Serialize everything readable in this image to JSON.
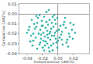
{
  "chart_data": {
    "type": "scatter",
    "xlabel": "Instantaneous CAR(%)",
    "ylabel": "Cumulative CAR(%)",
    "color": "#2bb3a5",
    "marker": "circle",
    "grid": false,
    "xlim": [
      -0.05,
      0.04
    ],
    "xticks": [
      -0.04,
      -0.02,
      {
        "value": 0,
        "label": "0.00"
      },
      0.02
    ],
    "ylim": [
      -0.04,
      0.01
    ],
    "yticks": [
      -0.04,
      -0.03,
      -0.02,
      -0.01,
      {
        "value": 0,
        "label": "0.00"
      },
      0.01
    ],
    "x": [
      -0.014,
      -0.02,
      -0.008,
      -0.025,
      -0.003,
      -0.03,
      0.005,
      -0.016,
      -0.011,
      -0.022,
      0.01,
      -0.035,
      -0.006,
      -0.018,
      0.002,
      -0.027,
      -0.012,
      0.014,
      -0.038,
      -0.001,
      -0.009,
      -0.019,
      -0.013,
      -0.004,
      -0.024,
      0.008,
      -0.032,
      -0.015,
      0.018,
      -0.007,
      -0.021,
      -0.01,
      0.003,
      -0.028,
      -0.017,
      0.012,
      -0.005,
      -0.033,
      -0.002,
      -0.023,
      0.02,
      -0.04,
      -0.011,
      0.006,
      -0.026,
      -0.014,
      0.001,
      -0.02,
      -0.008,
      0.015,
      -0.031,
      -0.016,
      -0.003,
      -0.036,
      0.009,
      -0.022,
      -0.012,
      0.004,
      -0.029,
      -0.006,
      0.022,
      -0.018,
      -0.009,
      -0.034,
      0.011,
      -0.013,
      -0.024,
      -0.001,
      0.007,
      -0.037,
      -0.019,
      -0.004,
      0.016,
      -0.027,
      -0.01,
      0.0,
      -0.015,
      -0.023,
      0.013,
      -0.007,
      -0.032,
      -0.017,
      0.005,
      -0.021,
      -0.011,
      0.019,
      -0.002,
      -0.028,
      -0.014,
      -0.005
    ],
    "values": [
      -0.017,
      -0.012,
      -0.022,
      -0.02,
      -0.01,
      -0.015,
      -0.018,
      -0.028,
      -0.006,
      -0.025,
      -0.014,
      -0.022,
      -0.03,
      -0.003,
      -0.024,
      -0.009,
      -0.034,
      -0.02,
      -0.016,
      -0.004,
      -0.015,
      -0.019,
      -0.011,
      -0.019,
      -0.031,
      -0.008,
      -0.027,
      0.002,
      -0.016,
      -0.037,
      -0.007,
      -0.026,
      -0.012,
      -0.013,
      -0.023,
      -0.026,
      -0.001,
      -0.032,
      -0.029,
      -0.016,
      -0.011,
      -0.019,
      -0.02,
      -0.031,
      -0.004,
      -0.03,
      -0.016,
      -0.034,
      -0.009,
      -0.023,
      -0.01,
      -0.014,
      -0.025,
      -0.028,
      -0.004,
      -0.021,
      0.004,
      -0.021,
      -0.024,
      -0.013,
      -0.019,
      -0.037,
      -0.032,
      -0.006,
      -0.029,
      -0.024,
      -0.001,
      -0.034,
      -0.011,
      -0.013,
      -0.027,
      -0.006,
      -0.009,
      -0.035,
      -0.018,
      -0.027,
      -0.008,
      -0.029,
      -0.033,
      -0.003,
      -0.02,
      -0.032,
      -0.026,
      -0.012,
      -0.038,
      -0.025,
      -0.017,
      -0.002,
      -0.021,
      -0.022
    ]
  }
}
